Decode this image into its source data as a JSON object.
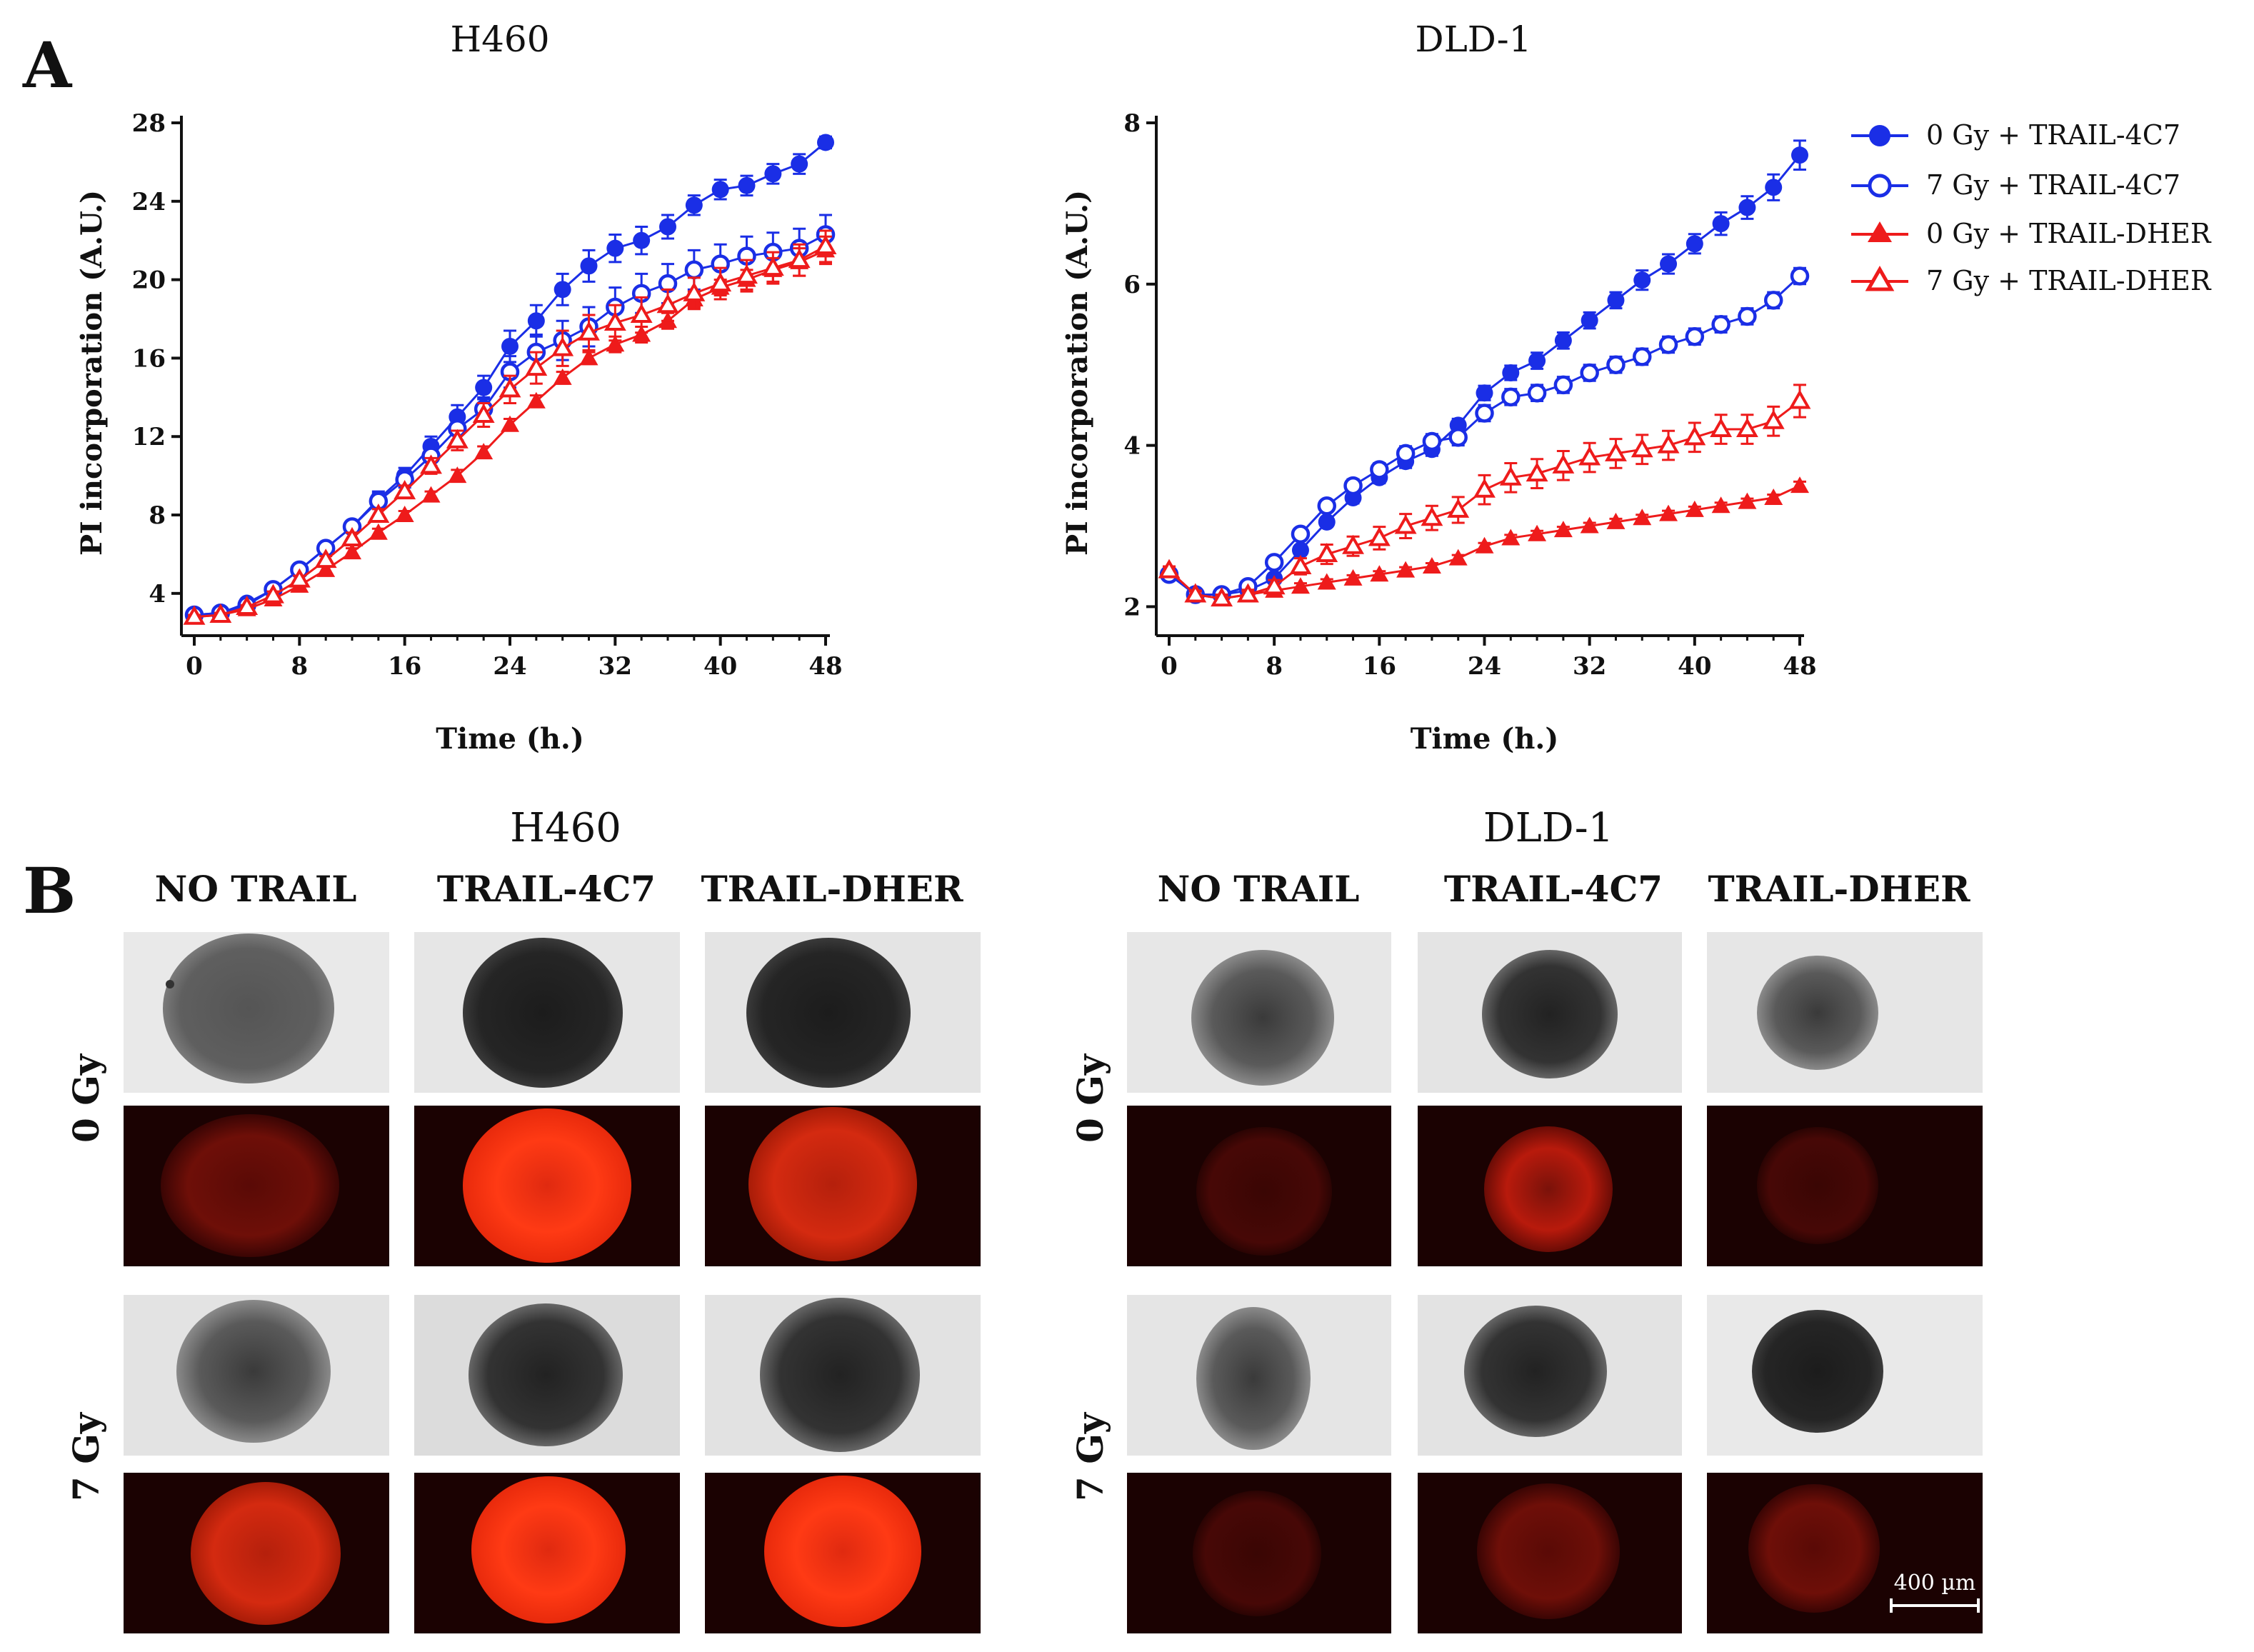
{
  "panel_a": {
    "letter": "A"
  },
  "panel_b": {
    "letter": "B",
    "columns": [
      "NO TRAIL",
      "TRAIL-4C7",
      "TRAIL-DHER"
    ],
    "rows": [
      "0 Gy",
      "7 Gy"
    ],
    "h460_title": "H460",
    "dld1_title": "DLD-1",
    "scale_bar_label": "400 µm"
  },
  "legend": [
    "0 Gy + TRAIL-4C7",
    "7 Gy + TRAIL-4C7",
    "0 Gy + TRAIL-DHER",
    "7 Gy + TRAIL-DHER"
  ],
  "colors": {
    "blue": "#1a2ee6",
    "red": "#ee1b1b",
    "axis": "#111111"
  },
  "chart_data": [
    {
      "type": "line",
      "title": "H460",
      "xlabel": "Time (h.)",
      "ylabel": "PI incorporation (A.U.)",
      "xlim": [
        0,
        48
      ],
      "ylim": [
        2.5,
        28
      ],
      "xticks": [
        0,
        8,
        16,
        24,
        32,
        40,
        48
      ],
      "yticks": [
        4,
        8,
        12,
        16,
        20,
        24,
        28
      ],
      "x": [
        0,
        2,
        4,
        6,
        8,
        10,
        12,
        14,
        16,
        18,
        20,
        22,
        24,
        26,
        28,
        30,
        32,
        34,
        36,
        38,
        40,
        42,
        44,
        46,
        48
      ],
      "series": [
        {
          "name": "0 Gy + TRAIL-4C7",
          "marker": "circle-filled",
          "color": "blue",
          "values": [
            2.9,
            3.0,
            3.5,
            4.2,
            5.2,
            6.3,
            7.4,
            8.8,
            10.0,
            11.5,
            13.0,
            14.5,
            16.6,
            17.9,
            19.5,
            20.7,
            21.6,
            22.0,
            22.7,
            23.8,
            24.6,
            24.8,
            25.4,
            25.9,
            27.0
          ],
          "errors": [
            0.2,
            0.2,
            0.2,
            0.2,
            0.2,
            0.3,
            0.3,
            0.4,
            0.4,
            0.5,
            0.6,
            0.6,
            0.8,
            0.8,
            0.8,
            0.8,
            0.7,
            0.7,
            0.6,
            0.5,
            0.5,
            0.5,
            0.5,
            0.5,
            0.3
          ]
        },
        {
          "name": "7 Gy + TRAIL-4C7",
          "marker": "circle-open",
          "color": "blue",
          "values": [
            2.9,
            3.0,
            3.4,
            4.2,
            5.2,
            6.3,
            7.4,
            8.7,
            9.8,
            11.0,
            12.4,
            13.4,
            15.3,
            16.3,
            16.9,
            17.6,
            18.6,
            19.3,
            19.8,
            20.5,
            20.8,
            21.2,
            21.4,
            21.6,
            22.3
          ],
          "errors": [
            0.2,
            0.2,
            0.2,
            0.2,
            0.2,
            0.3,
            0.3,
            0.4,
            0.4,
            0.5,
            0.6,
            0.6,
            0.8,
            0.9,
            1.0,
            1.0,
            1.0,
            1.0,
            1.0,
            1.0,
            1.0,
            1.0,
            1.0,
            1.0,
            1.0
          ]
        },
        {
          "name": "0 Gy + TRAIL-DHER",
          "marker": "triangle-filled",
          "color": "red",
          "values": [
            2.8,
            2.9,
            3.2,
            3.7,
            4.4,
            5.2,
            6.1,
            7.1,
            8.0,
            9.0,
            10.0,
            11.2,
            12.6,
            13.8,
            15.0,
            16.0,
            16.7,
            17.2,
            17.9,
            19.0,
            19.6,
            20.0,
            20.5,
            20.9,
            21.5
          ],
          "errors": [
            0.1,
            0.1,
            0.1,
            0.1,
            0.2,
            0.2,
            0.2,
            0.2,
            0.2,
            0.2,
            0.3,
            0.3,
            0.3,
            0.3,
            0.3,
            0.3,
            0.4,
            0.4,
            0.4,
            0.4,
            0.4,
            0.5,
            0.6,
            0.7,
            0.7
          ]
        },
        {
          "name": "7 Gy + TRAIL-DHER",
          "marker": "triangle-open",
          "color": "red",
          "values": [
            2.8,
            2.9,
            3.3,
            3.9,
            4.7,
            5.7,
            6.8,
            8.0,
            9.2,
            10.5,
            11.8,
            13.1,
            14.4,
            15.5,
            16.5,
            17.3,
            17.8,
            18.2,
            18.7,
            19.3,
            19.8,
            20.2,
            20.6,
            21.0,
            21.7
          ],
          "errors": [
            0.1,
            0.1,
            0.1,
            0.2,
            0.2,
            0.2,
            0.3,
            0.3,
            0.3,
            0.4,
            0.5,
            0.6,
            0.7,
            0.8,
            0.9,
            0.9,
            0.9,
            0.9,
            0.8,
            0.8,
            0.8,
            0.8,
            0.8,
            0.8,
            0.8
          ]
        }
      ]
    },
    {
      "type": "line",
      "title": "DLD-1",
      "xlabel": "Time (h.)",
      "ylabel": "PI incorporation (A.U.)",
      "xlim": [
        0,
        48
      ],
      "ylim": [
        1.8,
        8
      ],
      "xticks": [
        0,
        8,
        16,
        24,
        32,
        40,
        48
      ],
      "yticks": [
        2,
        4,
        6,
        8
      ],
      "x": [
        0,
        2,
        4,
        6,
        8,
        10,
        12,
        14,
        16,
        18,
        20,
        22,
        24,
        26,
        28,
        30,
        32,
        34,
        36,
        38,
        40,
        42,
        44,
        46,
        48
      ],
      "series": [
        {
          "name": "0 Gy + TRAIL-4C7",
          "marker": "circle-filled",
          "color": "blue",
          "values": [
            2.4,
            2.15,
            2.15,
            2.2,
            2.35,
            2.7,
            3.05,
            3.35,
            3.6,
            3.8,
            3.95,
            4.25,
            4.65,
            4.9,
            5.05,
            5.3,
            5.55,
            5.8,
            6.05,
            6.25,
            6.5,
            6.75,
            6.95,
            7.2,
            7.6
          ],
          "errors": [
            0.05,
            0.05,
            0.05,
            0.05,
            0.05,
            0.06,
            0.06,
            0.07,
            0.07,
            0.08,
            0.08,
            0.08,
            0.09,
            0.09,
            0.1,
            0.1,
            0.1,
            0.1,
            0.12,
            0.12,
            0.12,
            0.14,
            0.14,
            0.16,
            0.18
          ]
        },
        {
          "name": "7 Gy + TRAIL-4C7",
          "marker": "circle-open",
          "color": "blue",
          "values": [
            2.4,
            2.15,
            2.15,
            2.25,
            2.55,
            2.9,
            3.25,
            3.5,
            3.7,
            3.9,
            4.05,
            4.1,
            4.4,
            4.6,
            4.65,
            4.75,
            4.9,
            5.0,
            5.1,
            5.25,
            5.35,
            5.5,
            5.6,
            5.8,
            6.1
          ],
          "errors": [
            0.05,
            0.05,
            0.05,
            0.06,
            0.06,
            0.07,
            0.07,
            0.08,
            0.08,
            0.09,
            0.09,
            0.1,
            0.1,
            0.1,
            0.1,
            0.1,
            0.1,
            0.1,
            0.1,
            0.1,
            0.1,
            0.1,
            0.1,
            0.1,
            0.1
          ]
        },
        {
          "name": "0 Gy + TRAIL-DHER",
          "marker": "triangle-filled",
          "color": "red",
          "values": [
            2.45,
            2.15,
            2.1,
            2.15,
            2.2,
            2.25,
            2.3,
            2.35,
            2.4,
            2.45,
            2.5,
            2.6,
            2.75,
            2.85,
            2.9,
            2.95,
            3.0,
            3.05,
            3.1,
            3.15,
            3.2,
            3.25,
            3.3,
            3.35,
            3.5
          ],
          "errors": [
            0.04,
            0.04,
            0.04,
            0.04,
            0.04,
            0.04,
            0.04,
            0.04,
            0.04,
            0.04,
            0.04,
            0.04,
            0.04,
            0.04,
            0.04,
            0.04,
            0.04,
            0.04,
            0.04,
            0.04,
            0.04,
            0.04,
            0.04,
            0.04,
            0.05
          ]
        },
        {
          "name": "7 Gy + TRAIL-DHER",
          "marker": "triangle-open",
          "color": "red",
          "values": [
            2.45,
            2.15,
            2.1,
            2.15,
            2.25,
            2.5,
            2.65,
            2.75,
            2.85,
            3.0,
            3.1,
            3.2,
            3.45,
            3.6,
            3.65,
            3.75,
            3.85,
            3.9,
            3.95,
            4.0,
            4.1,
            4.2,
            4.2,
            4.3,
            4.55
          ],
          "errors": [
            0.05,
            0.05,
            0.05,
            0.06,
            0.08,
            0.1,
            0.12,
            0.12,
            0.14,
            0.15,
            0.15,
            0.16,
            0.18,
            0.18,
            0.18,
            0.18,
            0.18,
            0.18,
            0.18,
            0.18,
            0.18,
            0.18,
            0.18,
            0.18,
            0.2
          ]
        }
      ]
    }
  ]
}
